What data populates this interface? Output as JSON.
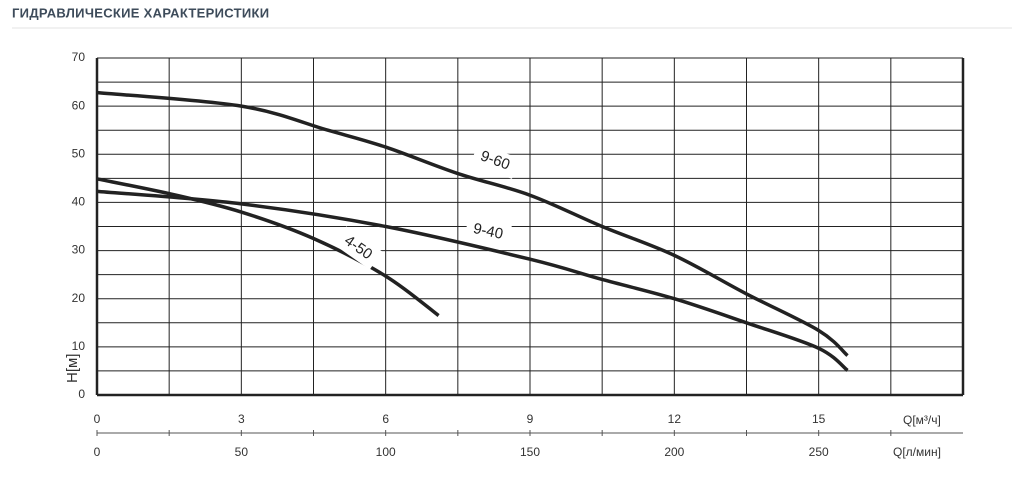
{
  "chart_data": {
    "type": "line",
    "title": "ГИДРАВЛИЧЕСКИЕ ХАРАКТЕРИСТИКИ",
    "ylabel": "H[м]",
    "xlabel": "Q[м³/ч]",
    "x2label": "Q[л/мин]",
    "xlim": [
      0,
      18
    ],
    "xticks": [
      0,
      3,
      6,
      9,
      12,
      15
    ],
    "x_minor_ticks": [
      1.5,
      4.5,
      7.5,
      10.5,
      13.5,
      16.5
    ],
    "x2lim": [
      0,
      300
    ],
    "x2ticks": [
      0,
      50,
      100,
      150,
      200,
      250
    ],
    "ylim": [
      0,
      70
    ],
    "yticks": [
      0,
      10,
      20,
      30,
      40,
      50,
      60,
      70
    ],
    "y_minor_ticks": [
      5,
      15,
      25,
      35,
      45,
      55,
      65
    ],
    "grid": true,
    "series": [
      {
        "name": "9-60",
        "color": "#222222",
        "x": [
          0,
          3,
          4.8,
          6,
          7.5,
          9,
          10.5,
          12,
          13.5,
          15,
          15.6
        ],
        "values": [
          62.8,
          60,
          55,
          51.5,
          46,
          41.5,
          35,
          29,
          21,
          13.4,
          8.2
        ]
      },
      {
        "name": "9-40",
        "color": "#222222",
        "x": [
          0,
          3,
          6,
          9,
          10.5,
          12,
          13.5,
          15,
          15.6
        ],
        "values": [
          42.3,
          39.7,
          35,
          28.2,
          24,
          20,
          15,
          9.7,
          5.1
        ]
      },
      {
        "name": "4-50",
        "color": "#222222",
        "x": [
          0,
          1.6,
          3,
          4.5,
          6,
          7.1
        ],
        "values": [
          44.9,
          41.6,
          38,
          32.5,
          24.7,
          16.5
        ]
      }
    ]
  }
}
